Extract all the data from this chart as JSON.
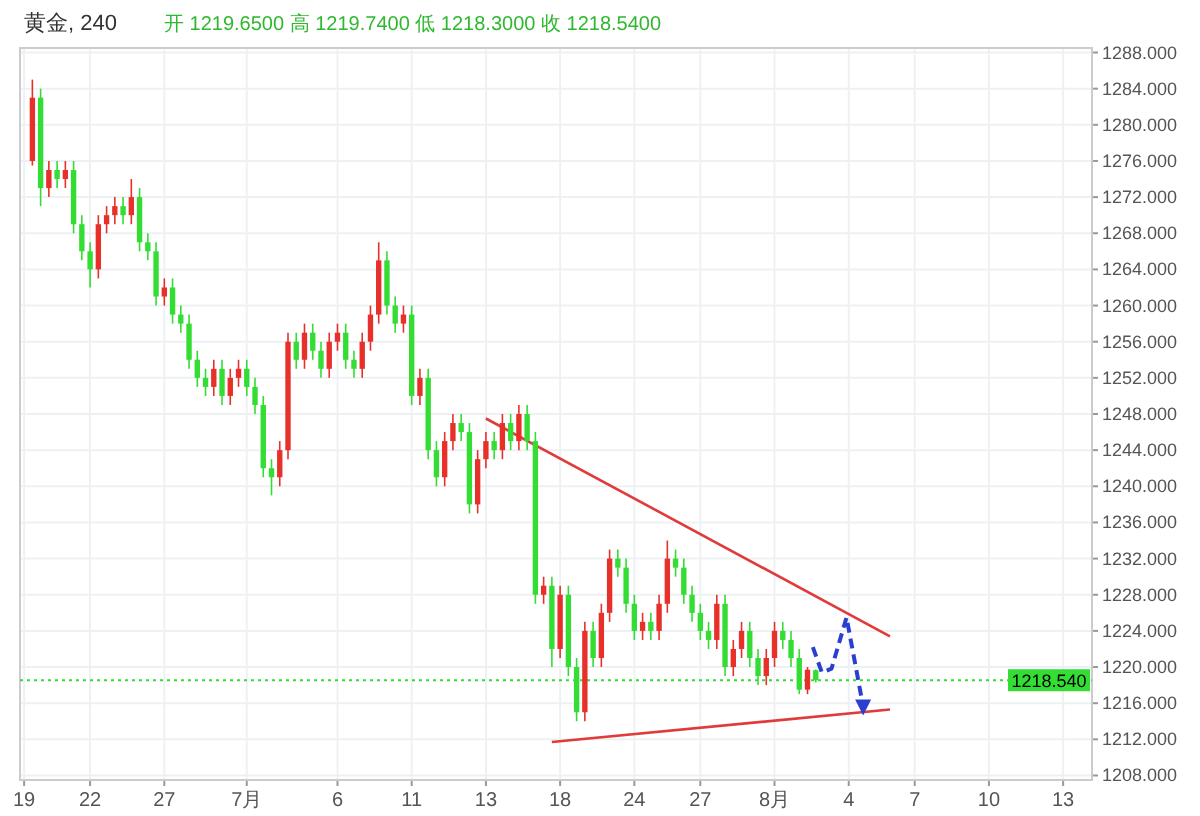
{
  "chart_data": {
    "type": "candlestick",
    "title": "黄金, 240",
    "subtitle": "开 1219.6500  高 1219.7400  低 1218.3000  收 1218.5400",
    "categories": [
      "19",
      null,
      null,
      null,
      null,
      null,
      null,
      null,
      "22",
      null,
      null,
      null,
      null,
      null,
      null,
      null,
      null,
      "27",
      null,
      null,
      null,
      null,
      null,
      null,
      null,
      null,
      null,
      "7月",
      null,
      null,
      null,
      null,
      null,
      null,
      null,
      null,
      null,
      null,
      "6",
      null,
      null,
      null,
      null,
      null,
      null,
      null,
      null,
      "11",
      null,
      null,
      null,
      null,
      null,
      null,
      null,
      null,
      "13",
      null,
      null,
      null,
      null,
      null,
      null,
      null,
      null,
      "18",
      null,
      null,
      null,
      null,
      null,
      null,
      null,
      null,
      "24",
      null,
      null,
      null,
      null,
      null,
      null,
      null,
      "27",
      null,
      null,
      null,
      null,
      null,
      null,
      null,
      null,
      "8月",
      null,
      null,
      null,
      null,
      null,
      null,
      null,
      null,
      "4",
      null,
      null,
      null,
      null,
      null,
      null,
      null,
      "7",
      null,
      null,
      null,
      null,
      null,
      null,
      null,
      null,
      "10",
      null,
      null,
      null,
      null,
      null,
      null,
      null,
      null,
      "13",
      null,
      null,
      null
    ],
    "ohlc": [
      null,
      [
        1276,
        1285,
        1275.5,
        1283
      ],
      [
        1283,
        1284,
        1271,
        1273
      ],
      [
        1273,
        1276,
        1272,
        1275
      ],
      [
        1275,
        1276,
        1273,
        1274
      ],
      [
        1274,
        1276,
        1273,
        1275
      ],
      [
        1275,
        1276,
        1268,
        1269
      ],
      [
        1269,
        1270,
        1265,
        1266
      ],
      [
        1266,
        1267,
        1262,
        1264
      ],
      [
        1264,
        1270,
        1263,
        1269
      ],
      [
        1269,
        1271,
        1268,
        1270
      ],
      [
        1270,
        1272,
        1269,
        1271
      ],
      [
        1271,
        1272,
        1269,
        1270
      ],
      [
        1270,
        1274,
        1269,
        1272
      ],
      [
        1272,
        1273,
        1266,
        1267
      ],
      [
        1267,
        1268,
        1265,
        1266
      ],
      [
        1266,
        1267,
        1260,
        1261
      ],
      [
        1261,
        1263,
        1260,
        1262
      ],
      [
        1262,
        1263,
        1258,
        1259
      ],
      [
        1259,
        1260,
        1257,
        1258
      ],
      [
        1258,
        1259,
        1253,
        1254
      ],
      [
        1254,
        1255,
        1251,
        1252
      ],
      [
        1252,
        1253,
        1250,
        1251
      ],
      [
        1251,
        1254,
        1250,
        1253
      ],
      [
        1253,
        1254,
        1249,
        1250
      ],
      [
        1250,
        1253,
        1249,
        1252
      ],
      [
        1252,
        1254,
        1251,
        1253
      ],
      [
        1253,
        1254,
        1250,
        1251
      ],
      [
        1251,
        1252,
        1248,
        1249
      ],
      [
        1249,
        1250,
        1241,
        1242
      ],
      [
        1242,
        1243,
        1239,
        1241
      ],
      [
        1241,
        1245,
        1240,
        1244
      ],
      [
        1244,
        1257,
        1243,
        1256
      ],
      [
        1256,
        1257,
        1253,
        1254
      ],
      [
        1254,
        1258,
        1253,
        1257
      ],
      [
        1257,
        1258,
        1254,
        1255
      ],
      [
        1255,
        1256,
        1252,
        1253
      ],
      [
        1253,
        1257,
        1252,
        1256
      ],
      [
        1256,
        1258,
        1255,
        1257
      ],
      [
        1257,
        1258,
        1253,
        1254
      ],
      [
        1254,
        1255,
        1252,
        1253
      ],
      [
        1253,
        1257,
        1252,
        1256
      ],
      [
        1256,
        1260,
        1255,
        1259
      ],
      [
        1259,
        1267,
        1258,
        1265
      ],
      [
        1265,
        1266,
        1259,
        1260
      ],
      [
        1260,
        1261,
        1257,
        1258
      ],
      [
        1258,
        1260,
        1257,
        1259
      ],
      [
        1259,
        1260,
        1249,
        1250
      ],
      [
        1250,
        1253,
        1249,
        1252
      ],
      [
        1252,
        1253,
        1243,
        1244
      ],
      [
        1244,
        1245,
        1240,
        1241
      ],
      [
        1241,
        1246,
        1240,
        1245
      ],
      [
        1245,
        1248,
        1244,
        1247
      ],
      [
        1247,
        1248,
        1245,
        1246
      ],
      [
        1246,
        1247,
        1237,
        1238
      ],
      [
        1238,
        1244,
        1237,
        1243
      ],
      [
        1243,
        1246,
        1242,
        1245
      ],
      [
        1245,
        1246,
        1243,
        1244
      ],
      [
        1244,
        1248,
        1243,
        1247
      ],
      [
        1247,
        1248,
        1244,
        1245
      ],
      [
        1245,
        1249,
        1244,
        1248
      ],
      [
        1248,
        1249,
        1244,
        1245
      ],
      [
        1245,
        1246,
        1227,
        1228
      ],
      [
        1228,
        1230,
        1227,
        1229
      ],
      [
        1229,
        1230,
        1220,
        1222
      ],
      [
        1222,
        1229,
        1221,
        1228
      ],
      [
        1228,
        1229,
        1219,
        1220
      ],
      [
        1220,
        1221,
        1214,
        1215
      ],
      [
        1215,
        1225,
        1214,
        1224
      ],
      [
        1224,
        1225,
        1220,
        1221
      ],
      [
        1221,
        1227,
        1220,
        1226
      ],
      [
        1226,
        1233,
        1225,
        1232
      ],
      [
        1232,
        1233,
        1230,
        1231
      ],
      [
        1231,
        1232,
        1226,
        1227
      ],
      [
        1227,
        1228,
        1223,
        1224
      ],
      [
        1224,
        1226,
        1223,
        1225
      ],
      [
        1225,
        1226,
        1223,
        1224
      ],
      [
        1224,
        1228,
        1223,
        1227
      ],
      [
        1227,
        1234,
        1226,
        1232
      ],
      [
        1232,
        1233,
        1230,
        1231
      ],
      [
        1231,
        1232,
        1227,
        1228
      ],
      [
        1228,
        1229,
        1225,
        1226
      ],
      [
        1226,
        1227,
        1223,
        1224
      ],
      [
        1224,
        1225,
        1222,
        1223
      ],
      [
        1223,
        1228,
        1222,
        1227
      ],
      [
        1227,
        1228,
        1219,
        1220
      ],
      [
        1220,
        1223,
        1219,
        1222
      ],
      [
        1222,
        1225,
        1221,
        1224
      ],
      [
        1224,
        1225,
        1220,
        1221
      ],
      [
        1221,
        1222,
        1218,
        1219
      ],
      [
        1219,
        1222,
        1218,
        1221
      ],
      [
        1221,
        1225,
        1220,
        1224
      ],
      [
        1224,
        1225,
        1222,
        1223
      ],
      [
        1223,
        1224,
        1220,
        1221
      ],
      [
        1221,
        1222,
        1217,
        1217.5
      ],
      [
        1217.5,
        1220,
        1217,
        1219.7
      ],
      [
        1219.65,
        1219.74,
        1218.3,
        1218.54
      ],
      null,
      null,
      null,
      null,
      null,
      null,
      null,
      null,
      null,
      null,
      null,
      null,
      null,
      null,
      null,
      null,
      null,
      null,
      null,
      null,
      null,
      null,
      null,
      null,
      null,
      null,
      null,
      null,
      null,
      null,
      null,
      null,
      null
    ],
    "colors": [
      null,
      "#e8302a",
      "#33dd33",
      "#e8302a",
      "#33dd33",
      "#e8302a",
      "#33dd33",
      "#33dd33",
      "#33dd33",
      "#e8302a",
      "#e8302a",
      "#e8302a",
      "#33dd33",
      "#e8302a",
      "#33dd33",
      "#33dd33",
      "#33dd33",
      "#e8302a",
      "#33dd33",
      "#33dd33",
      "#33dd33",
      "#33dd33",
      "#33dd33",
      "#e8302a",
      "#33dd33",
      "#e8302a",
      "#e8302a",
      "#33dd33",
      "#33dd33",
      "#33dd33",
      "#33dd33",
      "#e8302a",
      "#e8302a",
      "#33dd33",
      "#e8302a",
      "#33dd33",
      "#33dd33",
      "#e8302a",
      "#e8302a",
      "#33dd33",
      "#33dd33",
      "#e8302a",
      "#e8302a",
      "#e8302a",
      "#33dd33",
      "#33dd33",
      "#e8302a",
      "#33dd33",
      "#e8302a",
      "#33dd33",
      "#33dd33",
      "#e8302a",
      "#e8302a",
      "#33dd33",
      "#33dd33",
      "#e8302a",
      "#e8302a",
      "#33dd33",
      "#e8302a",
      "#33dd33",
      "#e8302a",
      "#33dd33",
      "#33dd33",
      "#e8302a",
      "#33dd33",
      "#e8302a",
      "#33dd33",
      "#33dd33",
      "#e8302a",
      "#33dd33",
      "#e8302a",
      "#e8302a",
      "#33dd33",
      "#33dd33",
      "#33dd33",
      "#e8302a",
      "#33dd33",
      "#e8302a",
      "#e8302a",
      "#33dd33",
      "#33dd33",
      "#33dd33",
      "#33dd33",
      "#33dd33",
      "#e8302a",
      "#33dd33",
      "#e8302a",
      "#e8302a",
      "#33dd33",
      "#33dd33",
      "#e8302a",
      "#e8302a",
      "#33dd33",
      "#33dd33",
      "#33dd33",
      "#e8302a",
      "#33dd33",
      null,
      null,
      null,
      null,
      null,
      null,
      null,
      null,
      null,
      null,
      null,
      null,
      null,
      null,
      null,
      null,
      null,
      null,
      null,
      null,
      null,
      null,
      null,
      null,
      null,
      null,
      null,
      null,
      null,
      null,
      null,
      null,
      null
    ],
    "series": [
      {
        "type": "line",
        "color": "#e03a3a",
        "values": [
          null,
          null,
          null,
          null,
          null,
          null,
          null,
          null,
          null,
          null,
          null,
          null,
          null,
          null,
          null,
          null,
          null,
          null,
          null,
          null,
          null,
          null,
          null,
          null,
          null,
          null,
          null,
          null,
          null,
          null,
          null,
          null,
          null,
          null,
          null,
          null,
          null,
          null,
          null,
          null,
          null,
          null,
          null,
          null,
          null,
          null,
          null,
          null,
          null,
          null,
          null,
          null,
          null,
          null,
          null,
          null,
          1247.5,
          null,
          null,
          null,
          null,
          null,
          null,
          null,
          null,
          null,
          null,
          null,
          null,
          null,
          null,
          null,
          null,
          null,
          null,
          null,
          null,
          null,
          null,
          null,
          null,
          null,
          null,
          null,
          null,
          null,
          null,
          null,
          null,
          null,
          null,
          null,
          null,
          null,
          null,
          null,
          null,
          null,
          null,
          null,
          null,
          null,
          null,
          null,
          null,
          1223.4,
          null,
          null,
          null,
          null,
          null,
          null,
          null,
          null,
          null,
          null,
          null,
          null,
          null,
          null,
          null,
          null,
          null,
          null,
          null,
          null,
          null,
          null,
          null,
          null
        ]
      },
      {
        "type": "line",
        "color": "#e03a3a",
        "values": [
          null,
          null,
          null,
          null,
          null,
          null,
          null,
          null,
          null,
          null,
          null,
          null,
          null,
          null,
          null,
          null,
          null,
          null,
          null,
          null,
          null,
          null,
          null,
          null,
          null,
          null,
          null,
          null,
          null,
          null,
          null,
          null,
          null,
          null,
          null,
          null,
          null,
          null,
          null,
          null,
          null,
          null,
          null,
          null,
          null,
          null,
          null,
          null,
          null,
          null,
          null,
          null,
          null,
          null,
          null,
          null,
          null,
          null,
          null,
          null,
          null,
          null,
          null,
          null,
          1211.7,
          null,
          null,
          null,
          null,
          null,
          null,
          null,
          null,
          null,
          null,
          null,
          null,
          null,
          null,
          null,
          null,
          null,
          null,
          null,
          null,
          null,
          null,
          null,
          null,
          null,
          null,
          null,
          null,
          null,
          null,
          null,
          null,
          null,
          null,
          null,
          null,
          null,
          null,
          null,
          null,
          1215.3,
          null,
          null,
          null,
          null,
          null,
          null,
          null,
          null,
          null,
          null,
          null,
          null,
          null,
          null,
          null,
          null,
          null,
          null,
          null,
          null,
          null,
          null,
          null,
          null
        ]
      }
    ],
    "ref_lines": [
      {
        "axis": "y",
        "value": 1218.54,
        "label": "1218.540",
        "color": "#33dd33",
        "line_style": "dotted"
      }
    ],
    "ylim": [
      1207.5,
      1288.5
    ],
    "yticks": [
      {
        "value": 1208,
        "label": "1208.000"
      },
      {
        "value": 1212,
        "label": "1212.000"
      },
      {
        "value": 1216,
        "label": "1216.000"
      },
      {
        "value": 1220,
        "label": "1220.000"
      },
      {
        "value": 1224,
        "label": "1224.000"
      },
      {
        "value": 1228,
        "label": "1228.000"
      },
      {
        "value": 1232,
        "label": "1232.000"
      },
      {
        "value": 1236,
        "label": "1236.000"
      },
      {
        "value": 1240,
        "label": "1240.000"
      },
      {
        "value": 1244,
        "label": "1244.000"
      },
      {
        "value": 1248,
        "label": "1248.000"
      },
      {
        "value": 1252,
        "label": "1252.000"
      },
      {
        "value": 1256,
        "label": "1256.000"
      },
      {
        "value": 1260,
        "label": "1260.000"
      },
      {
        "value": 1264,
        "label": "1264.000"
      },
      {
        "value": 1268,
        "label": "1268.000"
      },
      {
        "value": 1272,
        "label": "1272.000"
      },
      {
        "value": 1276,
        "label": "1276.000"
      },
      {
        "value": 1280,
        "label": "1280.000"
      },
      {
        "value": 1284,
        "label": "1284.000"
      },
      {
        "value": 1288,
        "label": "1288.000"
      }
    ],
    "grid": true
  }
}
